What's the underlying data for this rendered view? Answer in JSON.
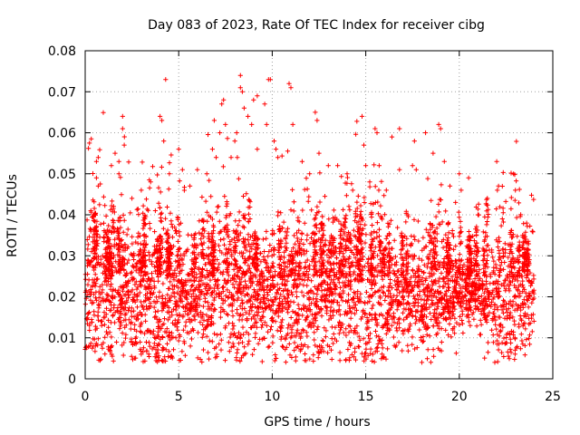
{
  "chart_data": {
    "type": "scatter",
    "title": "Day 083 of 2023, Rate Of TEC Index for receiver cibg",
    "xlabel": "GPS time / hours",
    "ylabel": "ROTI / TECUs",
    "xlim": [
      0,
      25
    ],
    "ylim": [
      0,
      0.08
    ],
    "xticks": [
      "0",
      "5",
      "10",
      "15",
      "20",
      "25"
    ],
    "yticks": [
      "0",
      "0.01",
      "0.02",
      "0.03",
      "0.04",
      "0.05",
      "0.06",
      "0.07",
      "0.08"
    ],
    "grid": true,
    "marker": "+",
    "color": "#ff0000",
    "x_extent": [
      0,
      24
    ],
    "typical_band": [
      0.01,
      0.03
    ],
    "outliers": [
      {
        "x": 0.3,
        "y": 0.041
      },
      {
        "x": 0.6,
        "y": 0.053
      },
      {
        "x": 0.7,
        "y": 0.054
      },
      {
        "x": 0.6,
        "y": 0.049
      },
      {
        "x": 0.7,
        "y": 0.047
      },
      {
        "x": 0.3,
        "y": 0.036
      },
      {
        "x": 1.4,
        "y": 0.052
      },
      {
        "x": 1.6,
        "y": 0.055
      },
      {
        "x": 1.8,
        "y": 0.053
      },
      {
        "x": 1.8,
        "y": 0.05
      },
      {
        "x": 2.0,
        "y": 0.064
      },
      {
        "x": 2.0,
        "y": 0.061
      },
      {
        "x": 2.1,
        "y": 0.059
      },
      {
        "x": 2.5,
        "y": 0.044
      },
      {
        "x": 3.0,
        "y": 0.046
      },
      {
        "x": 3.5,
        "y": 0.048
      },
      {
        "x": 4.0,
        "y": 0.064
      },
      {
        "x": 4.1,
        "y": 0.063
      },
      {
        "x": 4.2,
        "y": 0.058
      },
      {
        "x": 4.3,
        "y": 0.073
      },
      {
        "x": 4.5,
        "y": 0.05
      },
      {
        "x": 5.0,
        "y": 0.056
      },
      {
        "x": 5.2,
        "y": 0.051
      },
      {
        "x": 5.6,
        "y": 0.047
      },
      {
        "x": 6.0,
        "y": 0.051
      },
      {
        "x": 6.5,
        "y": 0.05
      },
      {
        "x": 6.8,
        "y": 0.056
      },
      {
        "x": 6.9,
        "y": 0.063
      },
      {
        "x": 7.0,
        "y": 0.054
      },
      {
        "x": 7.2,
        "y": 0.06
      },
      {
        "x": 7.3,
        "y": 0.067
      },
      {
        "x": 7.4,
        "y": 0.068
      },
      {
        "x": 7.5,
        "y": 0.062
      },
      {
        "x": 7.8,
        "y": 0.054
      },
      {
        "x": 8.0,
        "y": 0.058
      },
      {
        "x": 8.1,
        "y": 0.06
      },
      {
        "x": 8.3,
        "y": 0.074
      },
      {
        "x": 8.3,
        "y": 0.071
      },
      {
        "x": 8.4,
        "y": 0.07
      },
      {
        "x": 8.5,
        "y": 0.066
      },
      {
        "x": 8.7,
        "y": 0.064
      },
      {
        "x": 8.9,
        "y": 0.062
      },
      {
        "x": 9.0,
        "y": 0.068
      },
      {
        "x": 9.2,
        "y": 0.069
      },
      {
        "x": 9.2,
        "y": 0.056
      },
      {
        "x": 9.6,
        "y": 0.067
      },
      {
        "x": 9.7,
        "y": 0.062
      },
      {
        "x": 9.8,
        "y": 0.073
      },
      {
        "x": 9.9,
        "y": 0.073
      },
      {
        "x": 10.1,
        "y": 0.058
      },
      {
        "x": 10.2,
        "y": 0.056
      },
      {
        "x": 10.3,
        "y": 0.054
      },
      {
        "x": 10.9,
        "y": 0.072
      },
      {
        "x": 11.0,
        "y": 0.071
      },
      {
        "x": 11.1,
        "y": 0.062
      },
      {
        "x": 11.6,
        "y": 0.053
      },
      {
        "x": 12.0,
        "y": 0.05
      },
      {
        "x": 12.3,
        "y": 0.065
      },
      {
        "x": 12.4,
        "y": 0.063
      },
      {
        "x": 12.5,
        "y": 0.055
      },
      {
        "x": 13.0,
        "y": 0.052
      },
      {
        "x": 13.5,
        "y": 0.052
      },
      {
        "x": 14.0,
        "y": 0.05
      },
      {
        "x": 14.3,
        "y": 0.046
      },
      {
        "x": 14.8,
        "y": 0.064
      },
      {
        "x": 14.9,
        "y": 0.057
      },
      {
        "x": 15.0,
        "y": 0.052
      },
      {
        "x": 15.5,
        "y": 0.061
      },
      {
        "x": 15.6,
        "y": 0.06
      },
      {
        "x": 15.7,
        "y": 0.046
      },
      {
        "x": 16.1,
        "y": 0.046
      },
      {
        "x": 16.8,
        "y": 0.061
      },
      {
        "x": 16.8,
        "y": 0.051
      },
      {
        "x": 17.5,
        "y": 0.052
      },
      {
        "x": 17.6,
        "y": 0.058
      },
      {
        "x": 17.7,
        "y": 0.051
      },
      {
        "x": 18.2,
        "y": 0.06
      },
      {
        "x": 18.6,
        "y": 0.055
      },
      {
        "x": 18.9,
        "y": 0.062
      },
      {
        "x": 19.0,
        "y": 0.061
      },
      {
        "x": 19.2,
        "y": 0.053
      },
      {
        "x": 19.5,
        "y": 0.047
      },
      {
        "x": 19.8,
        "y": 0.043
      },
      {
        "x": 20.0,
        "y": 0.05
      },
      {
        "x": 20.1,
        "y": 0.046
      },
      {
        "x": 20.5,
        "y": 0.049
      },
      {
        "x": 21.0,
        "y": 0.04
      },
      {
        "x": 21.5,
        "y": 0.044
      },
      {
        "x": 22.0,
        "y": 0.053
      },
      {
        "x": 22.1,
        "y": 0.047
      },
      {
        "x": 22.3,
        "y": 0.039
      },
      {
        "x": 22.9,
        "y": 0.05
      },
      {
        "x": 23.0,
        "y": 0.046
      },
      {
        "x": 23.6,
        "y": 0.038
      },
      {
        "x": 23.9,
        "y": 0.036
      },
      {
        "x": 18.0,
        "y": 0.004
      },
      {
        "x": 21.9,
        "y": 0.004
      },
      {
        "x": 10.2,
        "y": 0.005
      },
      {
        "x": 3.0,
        "y": 0.006
      }
    ]
  }
}
